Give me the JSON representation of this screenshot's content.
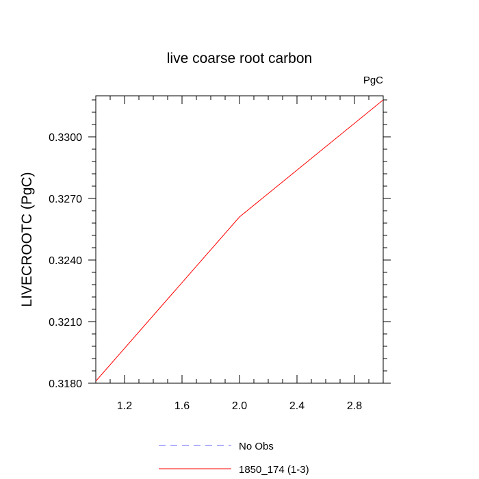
{
  "chart_data": {
    "type": "line",
    "title": "live coarse root carbon",
    "units_label": "PgC",
    "xlabel": "",
    "ylabel": "LIVECROOTC  (PgC)",
    "xlim": [
      1.0,
      3.0
    ],
    "ylim": [
      0.318,
      0.332
    ],
    "x_ticks": [
      1.2,
      1.6,
      2.0,
      2.4,
      2.8
    ],
    "x_tick_labels": [
      "1.2",
      "1.6",
      "2.0",
      "2.4",
      "2.8"
    ],
    "y_ticks": [
      0.318,
      0.321,
      0.324,
      0.327,
      0.33
    ],
    "y_tick_labels": [
      "0.3180",
      "0.3210",
      "0.3240",
      "0.3270",
      "0.3300"
    ],
    "grid": false,
    "legend_position": "bottom",
    "series": [
      {
        "name": "No Obs",
        "color": "#6666ff",
        "dash": "dashed",
        "x": [],
        "y": []
      },
      {
        "name": "1850_174 (1-3)",
        "color": "#ff0000",
        "dash": "solid",
        "x": [
          1.0,
          2.0,
          3.0
        ],
        "y": [
          0.3181,
          0.3261,
          0.3318
        ]
      }
    ]
  }
}
